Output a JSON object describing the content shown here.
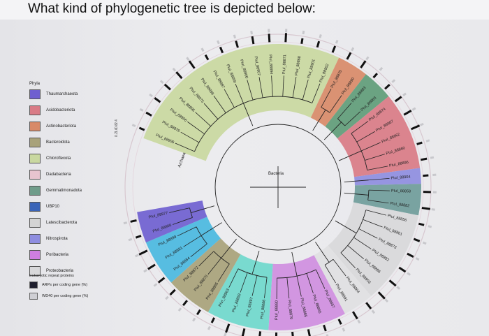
{
  "question": "What kind of phylogenetic tree is depicted below:",
  "legend": {
    "title": "Phyla",
    "items": [
      {
        "label": "Thaumarchaeota",
        "color": "#6f5fd0"
      },
      {
        "label": "Acidobacteriota",
        "color": "#d97b86"
      },
      {
        "label": "Actinobacteriota",
        "color": "#d88a68"
      },
      {
        "label": "Bacteroidota",
        "color": "#a8a27a"
      },
      {
        "label": "Chloroflexota",
        "color": "#c9d8a0"
      },
      {
        "label": "Dadabacteria",
        "color": "#e8c4cf"
      },
      {
        "label": "Gemmatimonadota",
        "color": "#6f9c8a"
      },
      {
        "label": "UBP10",
        "color": "#3a64b8"
      },
      {
        "label": "Latescibacterota",
        "color": "#d4d4d4"
      },
      {
        "label": "Nitrospirota",
        "color": "#8e8de0"
      },
      {
        "label": "Poribacteria",
        "color": "#cf7ee0"
      },
      {
        "label": "Proteobacteria",
        "color": "#d8d8da"
      }
    ]
  },
  "eukaryotic": {
    "title": "Eukaryotic repeat proteins",
    "items": [
      {
        "label": "ARPs per coding gene (%)",
        "color": "#1e1e2e"
      },
      {
        "label": "WD40 per coding gene (%)",
        "color": "#cfcfd4"
      }
    ]
  },
  "scale_labels": [
    "2.4",
    "0.8",
    "1.6",
    "0.2"
  ],
  "clade_labels": {
    "archaea": "Archaea",
    "bacteria": "Bacteria"
  },
  "tree": {
    "clades": [
      {
        "name": "chloroflexota",
        "color": "#c9d8a0",
        "leaves": [
          "PIuI_88906",
          "PIuI_88876",
          "PIuI_88906",
          "PIuI_88895",
          "PIuI_88875",
          "PIuI_88898",
          "PIuI_88887",
          "PIuI_88869",
          "PIuI_88900",
          "PIuI_88907",
          "PIuI_88894",
          "PIuI_88871",
          "PIuI_88868",
          "PIuI_88901",
          "PIuI_88902"
        ]
      },
      {
        "name": "actinobacteriota",
        "color": "#d88a68",
        "leaves": [
          "PIuI_88870",
          "PIuI_88890"
        ]
      },
      {
        "name": "gemmatimonadota",
        "color": "#5f9c78",
        "leaves": [
          "PIuI_88893",
          "PIuI_88883"
        ]
      },
      {
        "name": "acidobacteriota",
        "color": "#d97b86",
        "leaves": [
          "PIuI_88874",
          "PIuI_88867",
          "PIuI_88862",
          "PIuI_88860",
          "PIuI_88896"
        ]
      },
      {
        "name": "nitrospirota",
        "color": "#8e8de0",
        "leaves": [
          "PIuI_88904"
        ]
      },
      {
        "name": "gemm2",
        "color": "#6f9c9a",
        "leaves": [
          "PIuI_88858",
          "PIuI_88882"
        ]
      },
      {
        "name": "proteobacteria",
        "color": "#d8d8da",
        "leaves": [
          "PIuI_88856",
          "PIuI_88861",
          "PIuI_88873",
          "PIuI_88892",
          "PIuI_88886",
          "PIuI_88903"
        ]
      },
      {
        "name": "latescibacterota",
        "color": "#e0e0e2",
        "leaves": [
          "PIuI_88864",
          "PIuI_88891"
        ]
      },
      {
        "name": "poribacteria",
        "color": "#cf8ee0",
        "leaves": [
          "PIuI_88857",
          "PIuI_88865",
          "PIuI_88885",
          "PIuI_88879",
          "PIuI_88880"
        ]
      },
      {
        "name": "dadabacteria",
        "color": "#6fd8cc",
        "leaves": [
          "PIuI_88886",
          "PIuI_88897",
          "PIuI_88859",
          "PIuI_88863"
        ]
      },
      {
        "name": "bacteroidota",
        "color": "#a8a27a",
        "leaves": [
          "PIuI_88865",
          "PIuI_88870",
          "PIuI_88872"
        ]
      },
      {
        "name": "ubp10-blue",
        "color": "#4ab8e0",
        "leaves": [
          "PIuI_88884",
          "PIuI_88881",
          "PIuI_88899"
        ]
      },
      {
        "name": "thaumarchaeota",
        "color": "#6f5fd0",
        "leaves": [
          "PIuI_88866",
          "PIuI_88877"
        ]
      }
    ]
  }
}
